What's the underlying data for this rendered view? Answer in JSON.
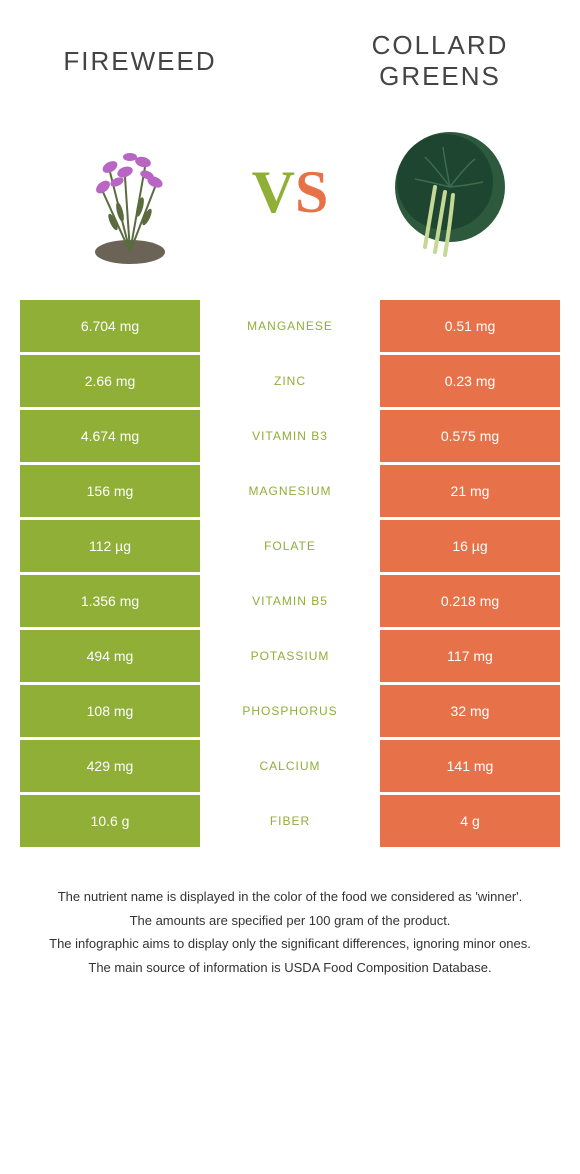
{
  "header": {
    "left_title": "Fireweed",
    "right_title": "Collard Greens"
  },
  "vs": {
    "v": "V",
    "s": "S"
  },
  "colors": {
    "left": "#8faf37",
    "right": "#e77249",
    "mid_left_winner": "#8faf37",
    "mid_right_winner": "#e77249"
  },
  "rows": [
    {
      "nutrient": "Manganese",
      "left": "6.704 mg",
      "right": "0.51 mg",
      "winner": "left"
    },
    {
      "nutrient": "Zinc",
      "left": "2.66 mg",
      "right": "0.23 mg",
      "winner": "left"
    },
    {
      "nutrient": "Vitamin B3",
      "left": "4.674 mg",
      "right": "0.575 mg",
      "winner": "left"
    },
    {
      "nutrient": "Magnesium",
      "left": "156 mg",
      "right": "21 mg",
      "winner": "left"
    },
    {
      "nutrient": "Folate",
      "left": "112 µg",
      "right": "16 µg",
      "winner": "left"
    },
    {
      "nutrient": "Vitamin B5",
      "left": "1.356 mg",
      "right": "0.218 mg",
      "winner": "left"
    },
    {
      "nutrient": "Potassium",
      "left": "494 mg",
      "right": "117 mg",
      "winner": "left"
    },
    {
      "nutrient": "Phosphorus",
      "left": "108 mg",
      "right": "32 mg",
      "winner": "left"
    },
    {
      "nutrient": "Calcium",
      "left": "429 mg",
      "right": "141 mg",
      "winner": "left"
    },
    {
      "nutrient": "Fiber",
      "left": "10.6 g",
      "right": "4 g",
      "winner": "left"
    }
  ],
  "footer": {
    "line1": "The nutrient name is displayed in the color of the food we considered as 'winner'.",
    "line2": "The amounts are specified per 100 gram of the product.",
    "line3": "The infographic aims to display only the significant differences, ignoring minor ones.",
    "line4": "The main source of information is USDA Food Composition Database."
  }
}
